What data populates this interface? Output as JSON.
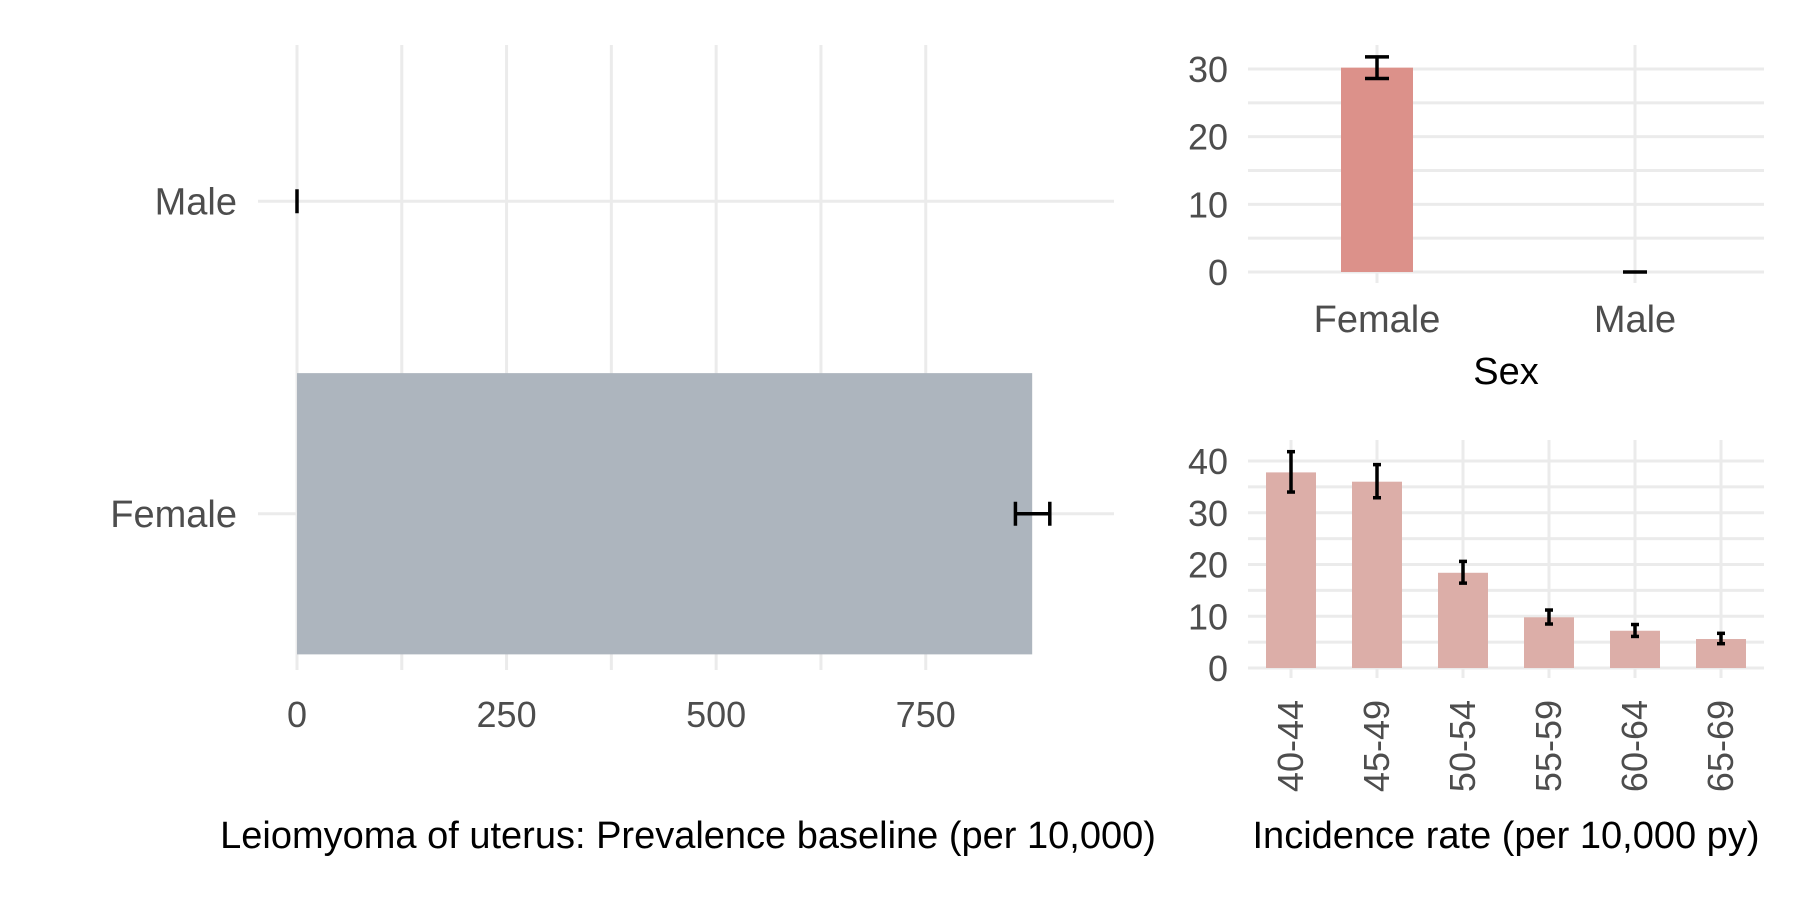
{
  "colors": {
    "prevalence_bar": "#adb5be",
    "sex_incidence_bar": "#dc918a",
    "age_incidence_bar": "#dcaea8",
    "error_bar": "#000000",
    "grid": "#ebebeb"
  },
  "chart_data": [
    {
      "id": "prevalence",
      "type": "bar",
      "orientation": "horizontal",
      "categories": [
        "Female",
        "Male"
      ],
      "values": [
        877,
        0
      ],
      "error_low": [
        857,
        0
      ],
      "error_high": [
        898,
        0
      ],
      "xlim": [
        0,
        940
      ],
      "x_ticks": [
        0,
        250,
        500,
        750
      ],
      "x_tick_labels": [
        "0",
        "250",
        "500",
        "750"
      ],
      "xlabel": "Leiomyoma of uterus: Prevalence baseline (per 10,000)",
      "ylabel": "",
      "grid": true
    },
    {
      "id": "incidence_sex",
      "type": "bar",
      "categories": [
        "Female",
        "Male"
      ],
      "values": [
        30.2,
        0
      ],
      "error_low": [
        28.6,
        0
      ],
      "error_high": [
        31.8,
        0
      ],
      "ylim": [
        0,
        33
      ],
      "y_ticks": [
        0,
        10,
        20,
        30
      ],
      "y_tick_labels": [
        "0",
        "10",
        "20",
        "30"
      ],
      "xlabel": "Sex",
      "ylabel": "",
      "grid": true
    },
    {
      "id": "incidence_age",
      "type": "bar",
      "categories": [
        "40-44",
        "45-49",
        "50-54",
        "55-59",
        "60-64",
        "65-69"
      ],
      "values": [
        37.8,
        36.0,
        18.4,
        9.8,
        7.2,
        5.6
      ],
      "error_low": [
        34.0,
        32.9,
        16.4,
        8.5,
        6.1,
        4.7
      ],
      "error_high": [
        41.8,
        39.3,
        20.6,
        11.2,
        8.4,
        6.7
      ],
      "ylim": [
        0,
        43
      ],
      "y_ticks": [
        0,
        10,
        20,
        30,
        40
      ],
      "y_tick_labels": [
        "0",
        "10",
        "20",
        "30",
        "40"
      ],
      "xlabel": "Incidence rate (per 10,000 py)",
      "ylabel": "",
      "grid": true
    }
  ]
}
